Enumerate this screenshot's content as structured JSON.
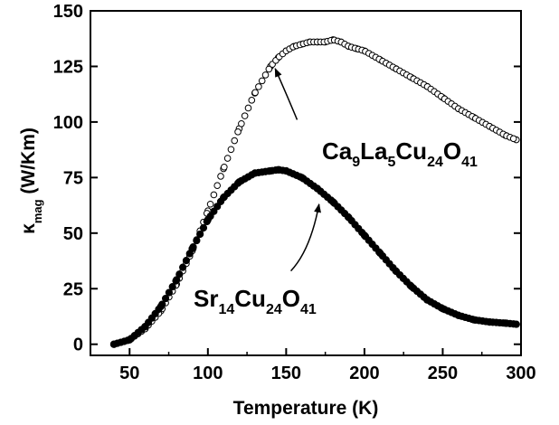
{
  "chart_data": {
    "type": "scatter",
    "xlabel": "Temperature (K)",
    "ylabel": {
      "main": "κ",
      "sub": "mag",
      "rest": " (W/Km)"
    },
    "xlim": [
      25,
      300
    ],
    "ylim": [
      -5,
      150
    ],
    "xticks": [
      50,
      100,
      150,
      200,
      250,
      300
    ],
    "yticks": [
      0,
      25,
      50,
      75,
      100,
      125,
      150
    ],
    "grid": false,
    "series": [
      {
        "key": "ca9la5",
        "label_parts": [
          {
            "t": "Ca",
            "sub": false
          },
          {
            "t": "9",
            "sub": true
          },
          {
            "t": "La",
            "sub": false
          },
          {
            "t": "5",
            "sub": true
          },
          {
            "t": "Cu",
            "sub": false
          },
          {
            "t": "24",
            "sub": true
          },
          {
            "t": "O",
            "sub": false
          },
          {
            "t": "41",
            "sub": true
          }
        ],
        "marker": "open-circle",
        "x": [
          40,
          50,
          60,
          70,
          80,
          90,
          100,
          110,
          120,
          130,
          140,
          145,
          150,
          155,
          160,
          165,
          170,
          175,
          180,
          185,
          190,
          195,
          200,
          210,
          220,
          230,
          240,
          250,
          260,
          270,
          280,
          290,
          297
        ],
        "y": [
          0,
          2,
          7,
          15,
          27,
          42,
          60,
          79,
          97,
          113,
          125,
          129,
          132,
          134,
          135,
          136,
          136,
          136,
          137,
          136,
          134,
          133,
          132,
          128,
          124,
          120,
          116,
          111,
          106,
          102,
          98,
          94,
          92
        ]
      },
      {
        "key": "sr14",
        "label_parts": [
          {
            "t": "Sr",
            "sub": false
          },
          {
            "t": "14",
            "sub": true
          },
          {
            "t": "Cu",
            "sub": false
          },
          {
            "t": "24",
            "sub": true
          },
          {
            "t": "O",
            "sub": false
          },
          {
            "t": "41",
            "sub": true
          }
        ],
        "marker": "filled-circle",
        "x": [
          40,
          50,
          60,
          70,
          80,
          90,
          100,
          110,
          120,
          130,
          140,
          145,
          150,
          160,
          170,
          180,
          190,
          200,
          210,
          220,
          230,
          240,
          250,
          260,
          270,
          280,
          290,
          297
        ],
        "y": [
          0,
          2,
          8,
          17,
          29,
          43,
          56,
          66,
          73,
          77,
          78,
          78.5,
          78,
          75,
          70,
          64,
          57,
          49,
          41,
          33,
          26,
          20,
          16,
          13,
          11,
          10,
          9.5,
          9
        ]
      }
    ],
    "annotations": [
      {
        "series": "ca9la5",
        "arrow_from": [
          157,
          101
        ],
        "arrow_to": [
          143,
          124
        ]
      },
      {
        "series": "sr14",
        "arrow_from": [
          153,
          33
        ],
        "arrow_to": [
          171,
          63
        ]
      }
    ]
  }
}
